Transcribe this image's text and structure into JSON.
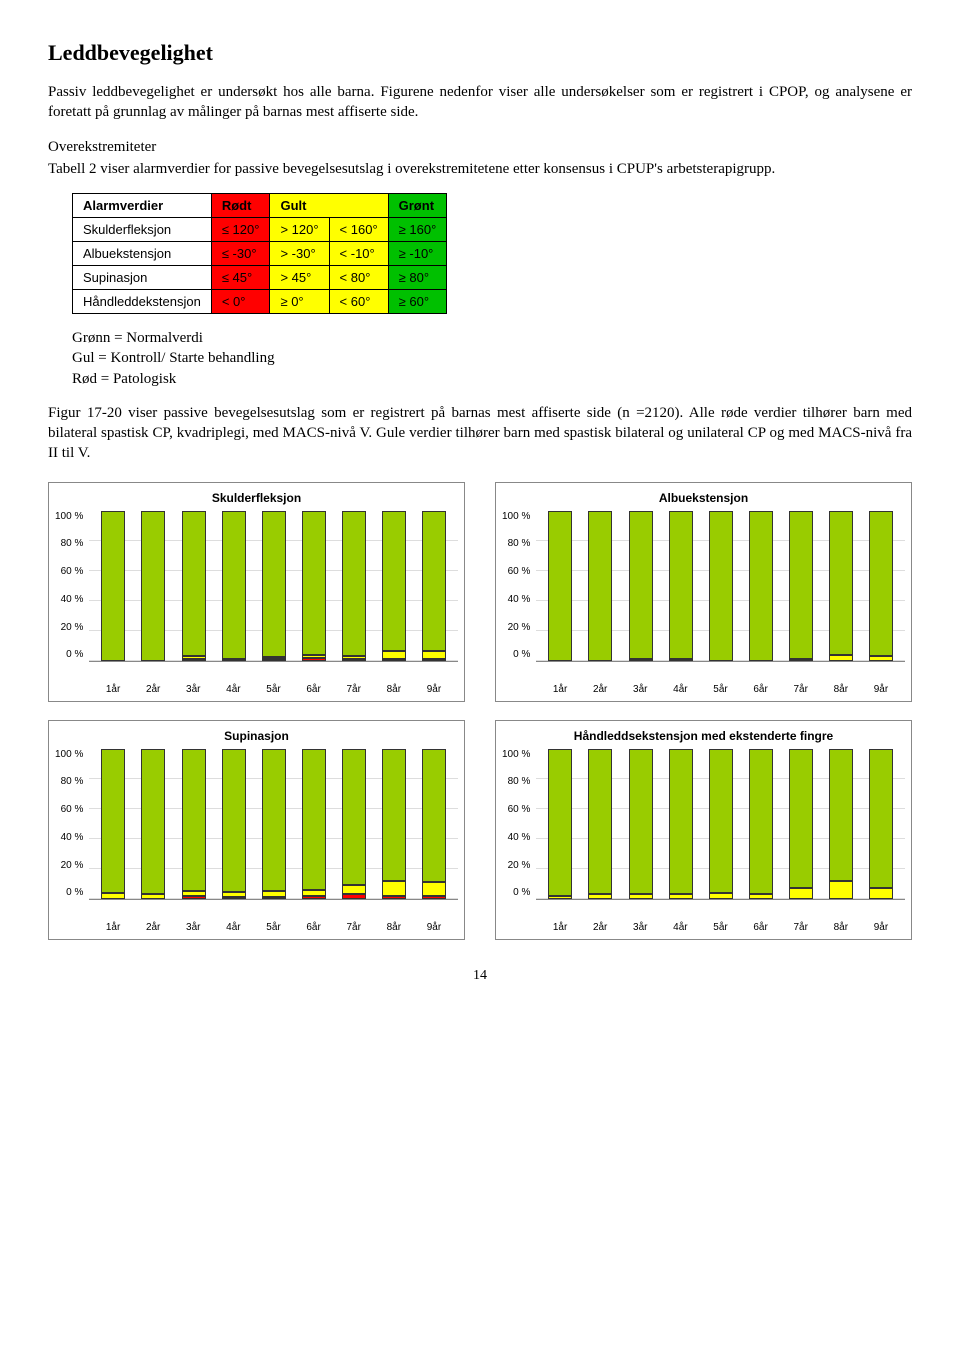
{
  "heading": "Leddbevegelighet",
  "intro_para": "Passiv leddbevegelighet er undersøkt hos alle barna. Figurene nedenfor viser alle undersøkelser som er registrert i CPOP, og analysene er foretatt på grunnlag av målinger på barnas mest affiserte side.",
  "subhead": "Overekstremiteter",
  "over_para": "Tabell 2 viser alarmverdier for passive bevegelsesutslag i overekstremitetene etter konsensus i CPUP's arbetsterapigrupp.",
  "alarm_table": {
    "headers": [
      "Alarmverdier",
      "Rødt",
      "Gult",
      "Grønt"
    ],
    "rows": [
      {
        "name": "Skulderfleksjon",
        "red": "≤ 120°",
        "yel_lo": "> 120°",
        "yel_hi": "< 160°",
        "grn": "≥ 160°"
      },
      {
        "name": "Albuekstensjon",
        "red": "≤ -30°",
        "yel_lo": "> -30°",
        "yel_hi": "< -10°",
        "grn": "≥ -10°"
      },
      {
        "name": "Supinasjon",
        "red": "≤  45°",
        "yel_lo": "> 45°",
        "yel_hi": "< 80°",
        "grn": "≥  80°"
      },
      {
        "name": "Håndleddekstensjon",
        "red": "<   0°",
        "yel_lo": "≥ 0°",
        "yel_hi": "< 60°",
        "grn": "≥  60°"
      }
    ]
  },
  "legend": {
    "l1": "Grønn = Normalverdi",
    "l2": "Gul    = Kontroll/ Starte behandling",
    "l3": "Rød   = Patologisk"
  },
  "fig_para": "Figur 17-20 viser passive bevegelsesutslag som er registrert på barnas mest affiserte side (n =2120). Alle røde verdier tilhører barn med bilateral spastisk CP, kvadriplegi, med MACS-nivå V. Gule verdier tilhører barn med spastisk bilateral og unilateral CP og med MACS-nivå fra II til V.",
  "chart_common": {
    "y_ticks": [
      "100 %",
      "80 %",
      "60 %",
      "40 %",
      "20 %",
      "0 %"
    ],
    "x_cats": [
      "1år",
      "2år",
      "3år",
      "4år",
      "5år",
      "6år",
      "7år",
      "8år",
      "9år"
    ],
    "colors": {
      "red": "#ff0000",
      "yellow": "#ffff00",
      "green": "#99cc00"
    },
    "ylim": [
      0,
      100
    ],
    "grid_color": "#dddddd"
  },
  "charts": [
    {
      "title": "Skulderfleksjon",
      "bars": [
        {
          "red": 0,
          "yel": 0,
          "grn": 100
        },
        {
          "red": 0,
          "yel": 0,
          "grn": 100
        },
        {
          "red": 1,
          "yel": 2,
          "grn": 97
        },
        {
          "red": 0,
          "yel": 1,
          "grn": 99
        },
        {
          "red": 1,
          "yel": 1,
          "grn": 98
        },
        {
          "red": 2,
          "yel": 2,
          "grn": 96
        },
        {
          "red": 1,
          "yel": 2,
          "grn": 97
        },
        {
          "red": 1,
          "yel": 5,
          "grn": 94
        },
        {
          "red": 1,
          "yel": 5,
          "grn": 94
        }
      ]
    },
    {
      "title": "Albuekstensjon",
      "bars": [
        {
          "red": 0,
          "yel": 0,
          "grn": 100
        },
        {
          "red": 0,
          "yel": 0,
          "grn": 100
        },
        {
          "red": 0,
          "yel": 1,
          "grn": 99
        },
        {
          "red": 0,
          "yel": 1,
          "grn": 99
        },
        {
          "red": 0,
          "yel": 0,
          "grn": 100
        },
        {
          "red": 0,
          "yel": 0,
          "grn": 100
        },
        {
          "red": 0,
          "yel": 1,
          "grn": 99
        },
        {
          "red": 0,
          "yel": 4,
          "grn": 96
        },
        {
          "red": 0,
          "yel": 3,
          "grn": 97
        }
      ]
    },
    {
      "title": "Supinasjon",
      "bars": [
        {
          "red": 0,
          "yel": 4,
          "grn": 96
        },
        {
          "red": 0,
          "yel": 3,
          "grn": 97
        },
        {
          "red": 2,
          "yel": 3,
          "grn": 95
        },
        {
          "red": 1,
          "yel": 3,
          "grn": 96
        },
        {
          "red": 1,
          "yel": 4,
          "grn": 95
        },
        {
          "red": 2,
          "yel": 4,
          "grn": 94
        },
        {
          "red": 3,
          "yel": 6,
          "grn": 91
        },
        {
          "red": 2,
          "yel": 10,
          "grn": 88
        },
        {
          "red": 2,
          "yel": 9,
          "grn": 89
        }
      ]
    },
    {
      "title": "Håndleddsekstensjon med ekstenderte fingre",
      "bars": [
        {
          "red": 0,
          "yel": 2,
          "grn": 98
        },
        {
          "red": 0,
          "yel": 3,
          "grn": 97
        },
        {
          "red": 0,
          "yel": 3,
          "grn": 97
        },
        {
          "red": 0,
          "yel": 3,
          "grn": 97
        },
        {
          "red": 0,
          "yel": 4,
          "grn": 96
        },
        {
          "red": 0,
          "yel": 3,
          "grn": 97
        },
        {
          "red": 0,
          "yel": 7,
          "grn": 93
        },
        {
          "red": 0,
          "yel": 12,
          "grn": 88
        },
        {
          "red": 0,
          "yel": 7,
          "grn": 93
        }
      ]
    }
  ],
  "page_number": "14"
}
